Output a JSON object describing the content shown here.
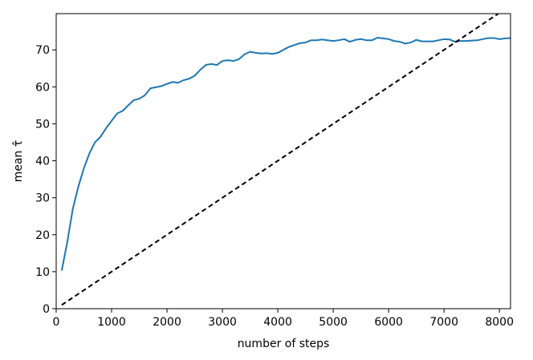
{
  "chart_data": {
    "type": "line",
    "x_label": "number of steps",
    "y_label": "mean τ̂",
    "xlim": [
      0,
      8200
    ],
    "ylim": [
      0,
      79.8
    ],
    "xticks": [
      0,
      1000,
      2000,
      3000,
      4000,
      5000,
      6000,
      7000,
      8000
    ],
    "yticks": [
      0,
      10,
      20,
      30,
      40,
      50,
      60,
      70
    ],
    "grid": false,
    "series": [
      {
        "color": "#1f77b4",
        "dash": false,
        "x": [
          100,
          200,
          300,
          400,
          500,
          600,
          700,
          800,
          900,
          1000,
          1100,
          1200,
          1300,
          1400,
          1500,
          1600,
          1700,
          1800,
          1900,
          2000,
          2100,
          2200,
          2300,
          2400,
          2500,
          2600,
          2700,
          2800,
          2900,
          3000,
          3100,
          3200,
          3300,
          3400,
          3500,
          3600,
          3700,
          3800,
          3900,
          4000,
          4100,
          4200,
          4300,
          4400,
          4500,
          4600,
          4700,
          4800,
          4900,
          5000,
          5100,
          5200,
          5300,
          5400,
          5500,
          5600,
          5700,
          5800,
          5900,
          6000,
          6100,
          6200,
          6300,
          6400,
          6500,
          6600,
          6700,
          6800,
          6900,
          7000,
          7100,
          7200,
          7300,
          7400,
          7500,
          7600,
          7700,
          7800,
          7900,
          8000,
          8100,
          8200
        ],
        "values": [
          10.3,
          18,
          27,
          33,
          38,
          42,
          45,
          46.5,
          48.8,
          50.8,
          52.8,
          53.5,
          55,
          56.4,
          56.8,
          57.7,
          59.6,
          59.9,
          60.2,
          60.8,
          61.3,
          61.1,
          61.8,
          62.2,
          63,
          64.6,
          65.9,
          66.2,
          65.9,
          67,
          67.2,
          67,
          67.5,
          68.8,
          69.5,
          69.2,
          69,
          69.1,
          68.9,
          69.2,
          70,
          70.8,
          71.3,
          71.8,
          72,
          72.6,
          72.6,
          72.8,
          72.6,
          72.4,
          72.6,
          72.9,
          72.2,
          72.7,
          72.9,
          72.6,
          72.6,
          73.3,
          73.1,
          72.9,
          72.4,
          72.2,
          71.7,
          72,
          72.7,
          72.3,
          72.3,
          72.3,
          72.6,
          72.9,
          72.8,
          72.2,
          72.4,
          72.4,
          72.5,
          72.6,
          72.9,
          73.2,
          73.2,
          72.9,
          73.1,
          73.2
        ]
      },
      {
        "color": "#000000",
        "dash": true,
        "x": [
          100,
          7980
        ],
        "values": [
          1,
          79.8
        ]
      }
    ]
  }
}
